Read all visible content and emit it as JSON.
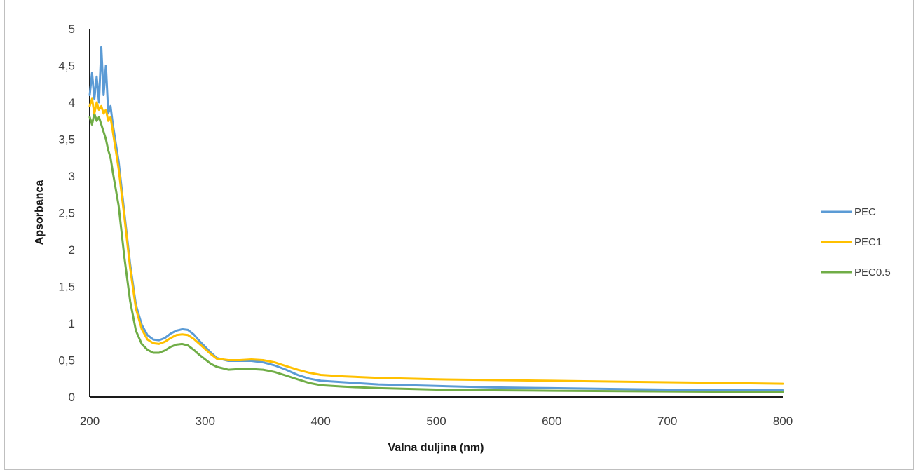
{
  "chart_data": {
    "type": "line",
    "title": "",
    "xlabel": "Valna duljina (nm)",
    "ylabel": "Apsorbanca",
    "xlim": [
      200,
      800
    ],
    "ylim": [
      0,
      5
    ],
    "xticks": [
      "200",
      "300",
      "400",
      "500",
      "600",
      "700",
      "800"
    ],
    "yticks": [
      "0",
      "0,5",
      "1",
      "1,5",
      "2",
      "2,5",
      "3",
      "3,5",
      "4",
      "4,5",
      "5"
    ],
    "grid": false,
    "legend": "right",
    "series": [
      {
        "name": "PEC",
        "color": "#5b9bd5",
        "x": [
          200,
          202,
          204,
          206,
          208,
          210,
          212,
          214,
          216,
          218,
          220,
          225,
          230,
          235,
          240,
          245,
          250,
          255,
          260,
          265,
          270,
          275,
          280,
          285,
          290,
          295,
          300,
          305,
          310,
          320,
          330,
          340,
          350,
          360,
          370,
          380,
          390,
          400,
          420,
          450,
          500,
          550,
          600,
          650,
          700,
          750,
          800
        ],
        "y": [
          4.1,
          4.4,
          4.05,
          4.35,
          4.0,
          4.75,
          4.1,
          4.5,
          3.85,
          3.95,
          3.7,
          3.2,
          2.5,
          1.8,
          1.25,
          0.98,
          0.84,
          0.78,
          0.77,
          0.8,
          0.86,
          0.9,
          0.92,
          0.91,
          0.85,
          0.76,
          0.68,
          0.6,
          0.53,
          0.49,
          0.49,
          0.49,
          0.47,
          0.43,
          0.37,
          0.3,
          0.25,
          0.22,
          0.2,
          0.17,
          0.15,
          0.13,
          0.12,
          0.11,
          0.1,
          0.1,
          0.09
        ]
      },
      {
        "name": "PEC1",
        "color": "#ffc000",
        "x": [
          200,
          202,
          204,
          206,
          208,
          210,
          212,
          214,
          216,
          218,
          220,
          225,
          230,
          235,
          240,
          245,
          250,
          255,
          260,
          265,
          270,
          275,
          280,
          285,
          290,
          295,
          300,
          305,
          310,
          320,
          330,
          340,
          350,
          360,
          370,
          380,
          390,
          400,
          420,
          450,
          500,
          550,
          600,
          650,
          700,
          750,
          800
        ],
        "y": [
          3.95,
          4.05,
          3.85,
          4.0,
          3.9,
          3.95,
          3.85,
          3.9,
          3.75,
          3.8,
          3.6,
          3.1,
          2.45,
          1.75,
          1.2,
          0.92,
          0.78,
          0.73,
          0.72,
          0.75,
          0.8,
          0.84,
          0.85,
          0.84,
          0.79,
          0.72,
          0.65,
          0.58,
          0.52,
          0.5,
          0.5,
          0.51,
          0.5,
          0.47,
          0.42,
          0.37,
          0.33,
          0.3,
          0.28,
          0.26,
          0.24,
          0.23,
          0.22,
          0.21,
          0.2,
          0.19,
          0.18
        ]
      },
      {
        "name": "PEC0.5",
        "color": "#70ad47",
        "x": [
          200,
          202,
          204,
          206,
          208,
          210,
          212,
          214,
          216,
          218,
          220,
          225,
          230,
          235,
          240,
          245,
          250,
          255,
          260,
          265,
          270,
          275,
          280,
          285,
          290,
          295,
          300,
          305,
          310,
          320,
          330,
          340,
          350,
          360,
          370,
          380,
          390,
          400,
          420,
          450,
          500,
          550,
          600,
          650,
          700,
          750,
          800
        ],
        "y": [
          3.8,
          3.7,
          3.85,
          3.75,
          3.8,
          3.7,
          3.6,
          3.5,
          3.35,
          3.25,
          3.05,
          2.6,
          1.9,
          1.3,
          0.9,
          0.72,
          0.64,
          0.6,
          0.6,
          0.63,
          0.68,
          0.71,
          0.72,
          0.7,
          0.64,
          0.57,
          0.51,
          0.45,
          0.41,
          0.37,
          0.38,
          0.38,
          0.37,
          0.34,
          0.29,
          0.24,
          0.19,
          0.16,
          0.14,
          0.12,
          0.1,
          0.09,
          0.085,
          0.08,
          0.075,
          0.07,
          0.07
        ]
      }
    ]
  }
}
